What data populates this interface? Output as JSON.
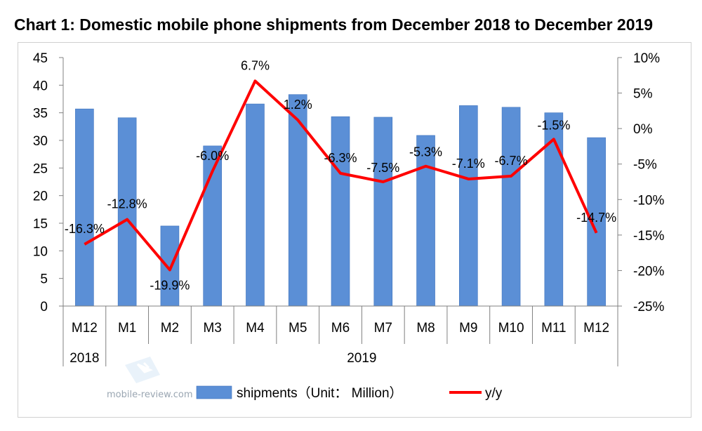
{
  "chart_data": {
    "type": "bar",
    "title": "Chart 1: Domestic mobile phone shipments from December 2018 to December 2019",
    "categories": [
      "M12",
      "M1",
      "M2",
      "M3",
      "M4",
      "M5",
      "M6",
      "M7",
      "M8",
      "M9",
      "M10",
      "M11",
      "M12"
    ],
    "year_groups": [
      {
        "label": "2018",
        "span": [
          0,
          0
        ]
      },
      {
        "label": "2019",
        "span": [
          1,
          12
        ]
      }
    ],
    "series": [
      {
        "name": "shipments（Unit： Million）",
        "type": "bar",
        "axis": "left",
        "color": "#5b8fd6",
        "values": [
          35.7,
          34.1,
          14.5,
          29.0,
          36.6,
          38.3,
          34.3,
          34.2,
          30.9,
          36.3,
          36.0,
          35.0,
          30.5
        ]
      },
      {
        "name": "y/y",
        "type": "line",
        "axis": "right",
        "color": "#ff0000",
        "values": [
          -16.3,
          -12.8,
          -19.9,
          -6.0,
          6.7,
          1.2,
          -6.3,
          -7.5,
          -5.3,
          -7.1,
          -6.7,
          -1.5,
          -14.7
        ],
        "labels": [
          "-16.3%",
          "-12.8%",
          "-19.9%",
          "-6.0%",
          "6.7%",
          "1.2%",
          "-6.3%",
          "-7.5%",
          "-5.3%",
          "-7.1%",
          "-6.7%",
          "-1.5%",
          "-14.7%"
        ]
      }
    ],
    "y_left": {
      "min": 0,
      "max": 45,
      "ticks": [
        "0",
        "5",
        "10",
        "15",
        "20",
        "25",
        "30",
        "35",
        "40",
        "45"
      ]
    },
    "y_right": {
      "min": -25,
      "max": 10,
      "ticks": [
        "-25%",
        "-20%",
        "-15%",
        "-10%",
        "-5%",
        "0%",
        "5%",
        "10%"
      ]
    },
    "legend": {
      "position": "bottom",
      "entries": [
        {
          "label": "shipments（Unit： Million）"
        },
        {
          "label": "y/y"
        }
      ]
    },
    "grid": false
  },
  "watermark": {
    "site": "mobile-review.com"
  }
}
